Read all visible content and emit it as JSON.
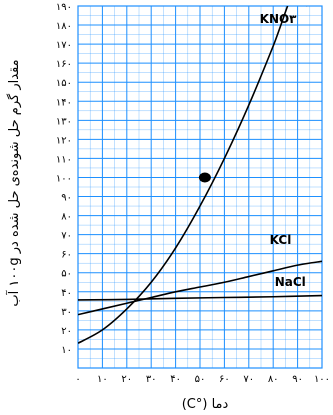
{
  "chart_data": {
    "type": "line",
    "xlabel": "دما (°C)",
    "ylabel": "مقدار گرم حل شونده‌ی حل شده در ۱۰۰g آب",
    "xlim": [
      0,
      100
    ],
    "ylim": [
      0,
      190
    ],
    "x_ticks": [
      {
        "value": 0,
        "label": "۰"
      },
      {
        "value": 10,
        "label": "۱۰"
      },
      {
        "value": 20,
        "label": "۲۰"
      },
      {
        "value": 30,
        "label": "۳۰"
      },
      {
        "value": 40,
        "label": "۴۰"
      },
      {
        "value": 50,
        "label": "۵۰"
      },
      {
        "value": 60,
        "label": "۶۰"
      },
      {
        "value": 70,
        "label": "۷۰"
      },
      {
        "value": 80,
        "label": "۸۰"
      },
      {
        "value": 90,
        "label": "۹۰"
      },
      {
        "value": 100,
        "label": "۱۰۰"
      }
    ],
    "y_ticks": [
      {
        "value": 10,
        "label": "۱۰"
      },
      {
        "value": 20,
        "label": "۲۰"
      },
      {
        "value": 30,
        "label": "۳۰"
      },
      {
        "value": 40,
        "label": "۴۰"
      },
      {
        "value": 50,
        "label": "۵۰"
      },
      {
        "value": 60,
        "label": "۶۰"
      },
      {
        "value": 70,
        "label": "۷۰"
      },
      {
        "value": 80,
        "label": "۸۰"
      },
      {
        "value": 90,
        "label": "۹۰"
      },
      {
        "value": 100,
        "label": "۱۰۰"
      },
      {
        "value": 110,
        "label": "۱۱۰"
      },
      {
        "value": 120,
        "label": "۱۲۰"
      },
      {
        "value": 130,
        "label": "۱۳۰"
      },
      {
        "value": 140,
        "label": "۱۴۰"
      },
      {
        "value": 150,
        "label": "۱۵۰"
      },
      {
        "value": 160,
        "label": "۱۶۰"
      },
      {
        "value": 170,
        "label": "۱۷۰"
      },
      {
        "value": 180,
        "label": "۱۸۰"
      },
      {
        "value": 190,
        "label": "۱۹۰"
      }
    ],
    "grid": true,
    "grid_color": "#1e90ff",
    "line_color": "#000000",
    "series": [
      {
        "name": "KNO۳",
        "label_at": [
          82,
          181
        ],
        "x": [
          0,
          10,
          20,
          30,
          40,
          50,
          60,
          70,
          80,
          90,
          94
        ],
        "y": [
          13,
          20,
          31,
          45,
          63,
          85,
          110,
          138,
          169,
          202,
          190
        ]
      },
      {
        "name": "KCl",
        "label_at": [
          83,
          65
        ],
        "x": [
          0,
          10,
          20,
          30,
          40,
          50,
          60,
          70,
          80,
          90,
          100
        ],
        "y": [
          28,
          31,
          34,
          37,
          40,
          42.5,
          45,
          48,
          51,
          54,
          56
        ]
      },
      {
        "name": "NaCl",
        "label_at": [
          87,
          43
        ],
        "x": [
          0,
          20,
          40,
          60,
          80,
          100
        ],
        "y": [
          35.7,
          36,
          36.6,
          37,
          37.4,
          38
        ]
      }
    ],
    "points": [
      {
        "x": 52,
        "y": 100
      }
    ]
  }
}
